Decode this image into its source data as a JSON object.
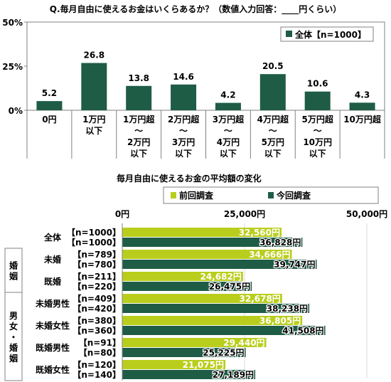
{
  "colors": {
    "dark": "#1E5C45",
    "light": "#B9CE1C",
    "axis": "#808080",
    "grid": "#D9D9D9"
  },
  "chart_data": [
    {
      "type": "bar",
      "title": "Q.毎月自由に使えるお金はいくらあるか？（数値入力回答：____円くらい）",
      "legend": "全体【n=1000】",
      "legend_position": "top-right",
      "y_ticks": [
        "50%",
        "25%",
        "0%"
      ],
      "ylim": [
        0,
        50
      ],
      "categories": [
        [
          "0円"
        ],
        [
          "1万円",
          "以下"
        ],
        [
          "1万円超",
          "～",
          "2万円",
          "以下"
        ],
        [
          "2万円超",
          "～",
          "3万円",
          "以下"
        ],
        [
          "3万円超",
          "～",
          "4万円",
          "以下"
        ],
        [
          "4万円超",
          "～",
          "5万円",
          "以下"
        ],
        [
          "5万円超",
          "～",
          "10万円",
          "以下"
        ],
        [
          "10万円超"
        ]
      ],
      "values": [
        5.2,
        26.8,
        13.8,
        14.6,
        4.2,
        20.5,
        10.6,
        4.3
      ],
      "value_labels": [
        "5.2",
        "26.8",
        "13.8",
        "14.6",
        "4.2",
        "20.5",
        "10.6",
        "4.3"
      ]
    },
    {
      "type": "bar",
      "orientation": "horizontal",
      "title": "毎月自由に使えるお金の平均額の変化",
      "legend": [
        "前回調査",
        "今回調査"
      ],
      "legend_position": "top",
      "x_ticks": [
        "0円",
        "25,000円",
        "50,000円"
      ],
      "xlim": [
        0,
        50000
      ],
      "groups": [
        {
          "section": "",
          "label": "全体",
          "n": [
            "【n=1000】",
            "【n=1000】"
          ],
          "values": [
            32560,
            36828
          ],
          "value_labels": [
            "32,560円",
            "36,828円"
          ]
        },
        {
          "section": "婚姻",
          "label": "未婚",
          "n": [
            "【n=789】",
            "【n=780】"
          ],
          "values": [
            34666,
            39747
          ],
          "value_labels": [
            "34,666円",
            "39,747円"
          ]
        },
        {
          "section": "婚姻",
          "label": "既婚",
          "n": [
            "【n=211】",
            "【n=220】"
          ],
          "values": [
            24682,
            26475
          ],
          "value_labels": [
            "24,682円",
            "26,475円"
          ]
        },
        {
          "section": "男女・婚姻",
          "label": "未婚男性",
          "n": [
            "【n=409】",
            "【n=420】"
          ],
          "values": [
            32678,
            38238
          ],
          "value_labels": [
            "32,678円",
            "38,238円"
          ]
        },
        {
          "section": "男女・婚姻",
          "label": "未婚女性",
          "n": [
            "【n=380】",
            "【n=360】"
          ],
          "values": [
            36805,
            41508
          ],
          "value_labels": [
            "36,805円",
            "41,508円"
          ]
        },
        {
          "section": "男女・婚姻",
          "label": "既婚男性",
          "n": [
            "【n=91】",
            "【n=80】"
          ],
          "values": [
            29440,
            25225
          ],
          "value_labels": [
            "29,440円",
            "25,225円"
          ]
        },
        {
          "section": "男女・婚姻",
          "label": "既婚女性",
          "n": [
            "【n=120】",
            "【n=140】"
          ],
          "values": [
            21075,
            27189
          ],
          "value_labels": [
            "21,075円",
            "27,189円"
          ]
        }
      ],
      "section_labels": [
        "婚姻",
        "男女・婚姻"
      ]
    }
  ]
}
